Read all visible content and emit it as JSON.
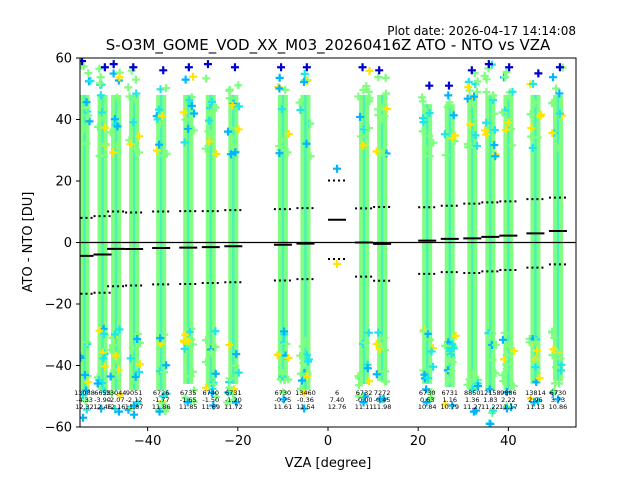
{
  "chart_data": {
    "type": "scatter",
    "title": "S-O3M_GOME_VOD_XX_M03_20260416Z ATO - NTO vs VZA",
    "plot_date": "Plot date: 2026-04-17 14:14:08",
    "xlabel": "VZA [degree]",
    "ylabel": "ATO - NTO [DU]",
    "xlim": [
      -55,
      55
    ],
    "ylim": [
      -60,
      60
    ],
    "x_ticks": [
      -40,
      -20,
      0,
      20,
      40
    ],
    "x_tick_labels": [
      "−40",
      "−20",
      "0",
      "20",
      "40"
    ],
    "y_ticks": [
      -60,
      -40,
      -20,
      0,
      20,
      40,
      60
    ],
    "y_tick_labels": [
      "−60",
      "−40",
      "−20",
      "0",
      "20",
      "40",
      "60"
    ],
    "colors": {
      "light_green": "#7fff7f",
      "cyan": "#1ee7e7",
      "sky_blue": "#00b4ff",
      "yellow": "#ffe600",
      "dark_blue": "#0000cc",
      "zero_line": "#000000"
    },
    "bins": [
      {
        "vza": -54,
        "count": "13088",
        "mean": "-4.33",
        "std": "12.32",
        "mean_val": -4.33,
        "std_val": 12.32,
        "ymin": -57,
        "ymax": 59
      },
      {
        "vza": -50,
        "count": "6653",
        "mean": "-3.90",
        "std": "12.46",
        "mean_val": -3.9,
        "std_val": 12.46,
        "ymin": -54,
        "ymax": 57
      },
      {
        "vza": -47,
        "count": "13044",
        "mean": "-2.07",
        "std": "12.16",
        "mean_val": -2.07,
        "std_val": 12.16,
        "ymin": -55,
        "ymax": 58
      },
      {
        "vza": -43,
        "count": "9051",
        "mean": "-2.12",
        "std": "11.87",
        "mean_val": -2.12,
        "std_val": 11.87,
        "ymin": -56,
        "ymax": 57
      },
      {
        "vza": -37,
        "count": "6726",
        "mean": "-1.77",
        "std": "11.86",
        "mean_val": -1.77,
        "std_val": 11.86,
        "ymin": -55,
        "ymax": 56
      },
      {
        "vza": -31,
        "count": "6735",
        "mean": "-1.65",
        "std": "11.85",
        "mean_val": -1.65,
        "std_val": 11.85,
        "ymin": -52,
        "ymax": 57
      },
      {
        "vza": -26,
        "count": "6740",
        "mean": "-1.50",
        "std": "11.69",
        "mean_val": -1.5,
        "std_val": 11.69,
        "ymin": -53,
        "ymax": 58
      },
      {
        "vza": -21,
        "count": "6731",
        "mean": "-1.20",
        "std": "11.72",
        "mean_val": -1.2,
        "std_val": 11.72,
        "ymin": -52,
        "ymax": 57
      },
      {
        "vza": -10,
        "count": "6730",
        "mean": "-0.75",
        "std": "11.61",
        "mean_val": -0.75,
        "std_val": 11.61,
        "ymin": -51,
        "ymax": 57
      },
      {
        "vza": -5,
        "count": "13460",
        "mean": "-0.36",
        "std": "11.54",
        "mean_val": -0.36,
        "std_val": 11.54,
        "ymin": -54,
        "ymax": 57
      },
      {
        "vza": 2,
        "count": "6",
        "mean": "7.40",
        "std": "12.76",
        "mean_val": 7.4,
        "std_val": 12.76,
        "ymin": -7,
        "ymax": 24
      },
      {
        "vza": 8,
        "count": "6732",
        "mean": "-0.00",
        "std": "11.11",
        "mean_val": -0.0,
        "std_val": 11.11,
        "ymin": -52,
        "ymax": 57
      },
      {
        "vza": 12,
        "count": "7272",
        "mean": "-0.45",
        "std": "11.98",
        "mean_val": -0.45,
        "std_val": 11.98,
        "ymin": -51,
        "ymax": 56
      },
      {
        "vza": 22,
        "count": "6730",
        "mean": "0.63",
        "std": "10.84",
        "mean_val": 0.63,
        "std_val": 10.84,
        "ymin": -52,
        "ymax": 51
      },
      {
        "vza": 27,
        "count": "6731",
        "mean": "1.16",
        "std": "10.79",
        "mean_val": 1.16,
        "std_val": 10.79,
        "ymin": -53,
        "ymax": 51
      },
      {
        "vza": 32,
        "count": "8850",
        "mean": "1.36",
        "std": "11.27",
        "mean_val": 1.36,
        "std_val": 11.27,
        "ymin": -55,
        "ymax": 56
      },
      {
        "vza": 36,
        "count": "12158",
        "mean": "1.83",
        "std": "11.22",
        "mean_val": 1.83,
        "std_val": 11.22,
        "ymin": -59,
        "ymax": 58
      },
      {
        "vza": 40,
        "count": "9886",
        "mean": "2.22",
        "std": "11.17",
        "mean_val": 2.22,
        "std_val": 11.17,
        "ymin": -54,
        "ymax": 57
      },
      {
        "vza": 46,
        "count": "13814",
        "mean": "2.96",
        "std": "11.13",
        "mean_val": 2.96,
        "std_val": 11.13,
        "ymin": -52,
        "ymax": 55
      },
      {
        "vza": 51,
        "count": "6730",
        "mean": "3.73",
        "std": "10.86",
        "mean_val": 3.73,
        "std_val": 10.86,
        "ymin": -51,
        "ymax": 57
      }
    ]
  }
}
